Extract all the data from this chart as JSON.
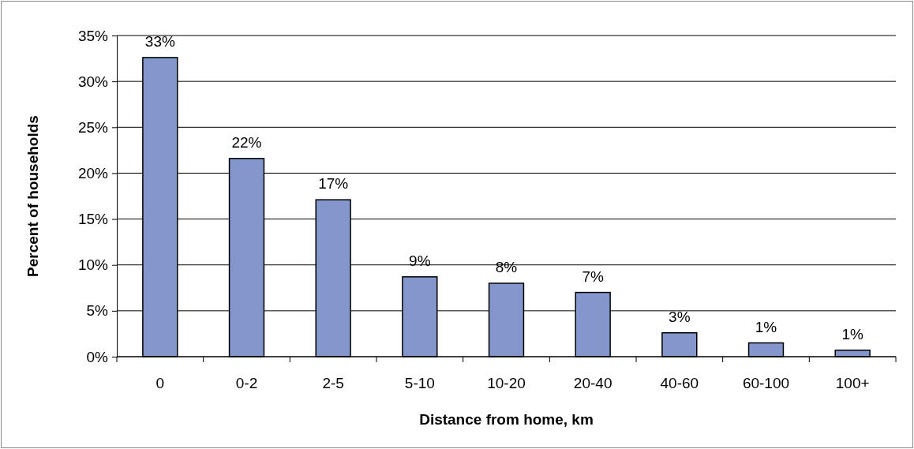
{
  "chart_data": {
    "type": "bar",
    "xlabel": "Distance from home, km",
    "ylabel": "Percent of households",
    "categories": [
      "0",
      "0-2",
      "2-5",
      "5-10",
      "10-20",
      "20-40",
      "40-60",
      "60-100",
      "100+"
    ],
    "values": [
      32.6,
      21.6,
      17.1,
      8.7,
      8.0,
      7.0,
      2.6,
      1.5,
      0.7
    ],
    "value_labels": [
      "33%",
      "22%",
      "17%",
      "9%",
      "8%",
      "7%",
      "3%",
      "1%",
      "1%"
    ],
    "color": "#8497cc",
    "ylim": [
      0,
      35
    ],
    "yticks": [
      {
        "value": 0,
        "label": "0%"
      },
      {
        "value": 5,
        "label": "5%"
      },
      {
        "value": 10,
        "label": "10%"
      },
      {
        "value": 15,
        "label": "15%"
      },
      {
        "value": 20,
        "label": "20%"
      },
      {
        "value": 25,
        "label": "25%"
      },
      {
        "value": 30,
        "label": "30%"
      },
      {
        "value": 35,
        "label": "35%"
      }
    ],
    "grid": "y"
  }
}
